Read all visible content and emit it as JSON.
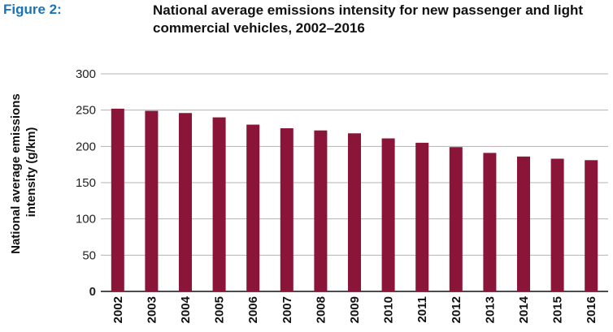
{
  "figure_label": "Figure 2:",
  "chart_data": {
    "type": "bar",
    "title": "National average emissions intensity for new passenger and light commercial vehicles, 2002–2016",
    "title_lines": [
      "National average emissions intensity for new passenger and light",
      "commercial vehicles, 2002–2016"
    ],
    "xlabel": "",
    "ylabel": "National average emissions intensity (g/km)",
    "ylabel_lines": [
      "National average emissions",
      "intensity (g/km)"
    ],
    "categories": [
      "2002",
      "2003",
      "2004",
      "2005",
      "2006",
      "2007",
      "2008",
      "2009",
      "2010",
      "2011",
      "2012",
      "2013",
      "2014",
      "2015",
      "2016"
    ],
    "values": [
      252,
      249,
      246,
      240,
      230,
      225,
      222,
      218,
      211,
      205,
      199,
      191,
      186,
      183,
      181
    ],
    "ylim": [
      0,
      300
    ],
    "yticks": [
      0,
      50,
      100,
      150,
      200,
      250,
      300
    ],
    "grid": true,
    "legend": "none",
    "bar_color": "#8a1538",
    "grid_color": "#b3b3b3"
  }
}
